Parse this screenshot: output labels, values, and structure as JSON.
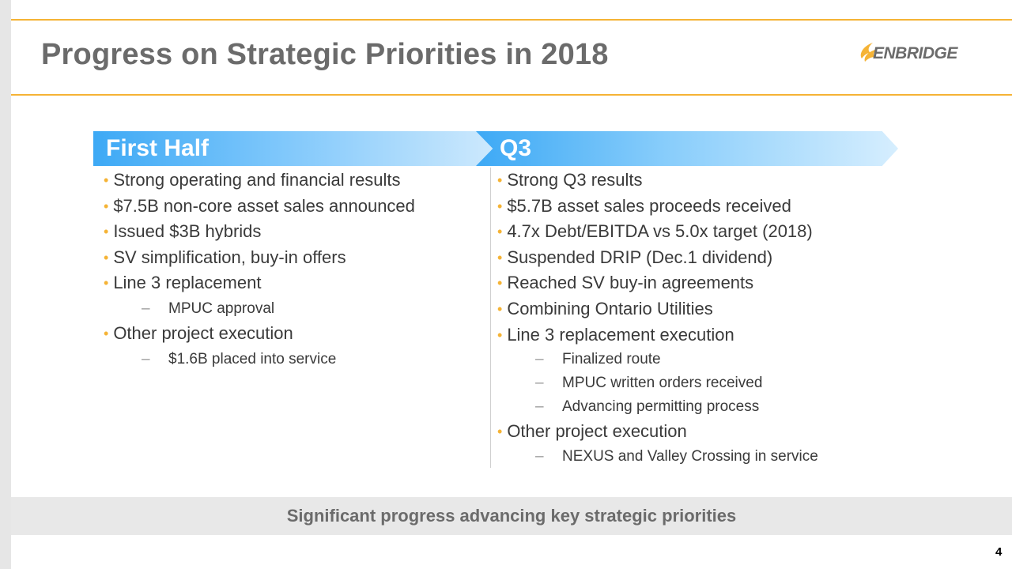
{
  "slide": {
    "title": "Progress on Strategic Priorities in 2018",
    "logo_text": "ENBRIDGE",
    "page_number": "4",
    "footer_message": "Significant progress advancing key strategic priorities"
  },
  "columns": {
    "first_half": {
      "heading": "First Half",
      "items": [
        {
          "text": "Strong operating and financial results"
        },
        {
          "text": "$7.5B non-core asset sales announced"
        },
        {
          "text": "Issued $3B hybrids"
        },
        {
          "text": "SV simplification, buy-in offers"
        },
        {
          "text": "Line 3 replacement",
          "sub": [
            "MPUC approval"
          ]
        },
        {
          "text": "Other project execution",
          "sub": [
            "$1.6B placed into service"
          ]
        }
      ]
    },
    "q3": {
      "heading": "Q3",
      "items": [
        {
          "text": "Strong Q3 results"
        },
        {
          "text": "$5.7B asset sales proceeds received"
        },
        {
          "text": "4.7x Debt/EBITDA vs 5.0x target (2018)"
        },
        {
          "text": "Suspended DRIP (Dec.1 dividend)"
        },
        {
          "text": "Reached SV buy-in agreements"
        },
        {
          "text": "Combining Ontario Utilities"
        },
        {
          "text": "Line 3 replacement execution",
          "sub": [
            "Finalized route",
            "MPUC written orders received",
            "Advancing permitting process"
          ]
        },
        {
          "text": "Other project execution",
          "sub": [
            "NEXUS and Valley Crossing in service"
          ]
        }
      ]
    }
  },
  "colors": {
    "accent_gold": "#f5b335",
    "banner_blue": "#3da9f5",
    "title_gray": "#6b6b6b"
  },
  "icons": {
    "logo": "enbridge-flame-logo",
    "bullet": "dot-bullet",
    "sub_bullet": "dash-bullet"
  }
}
